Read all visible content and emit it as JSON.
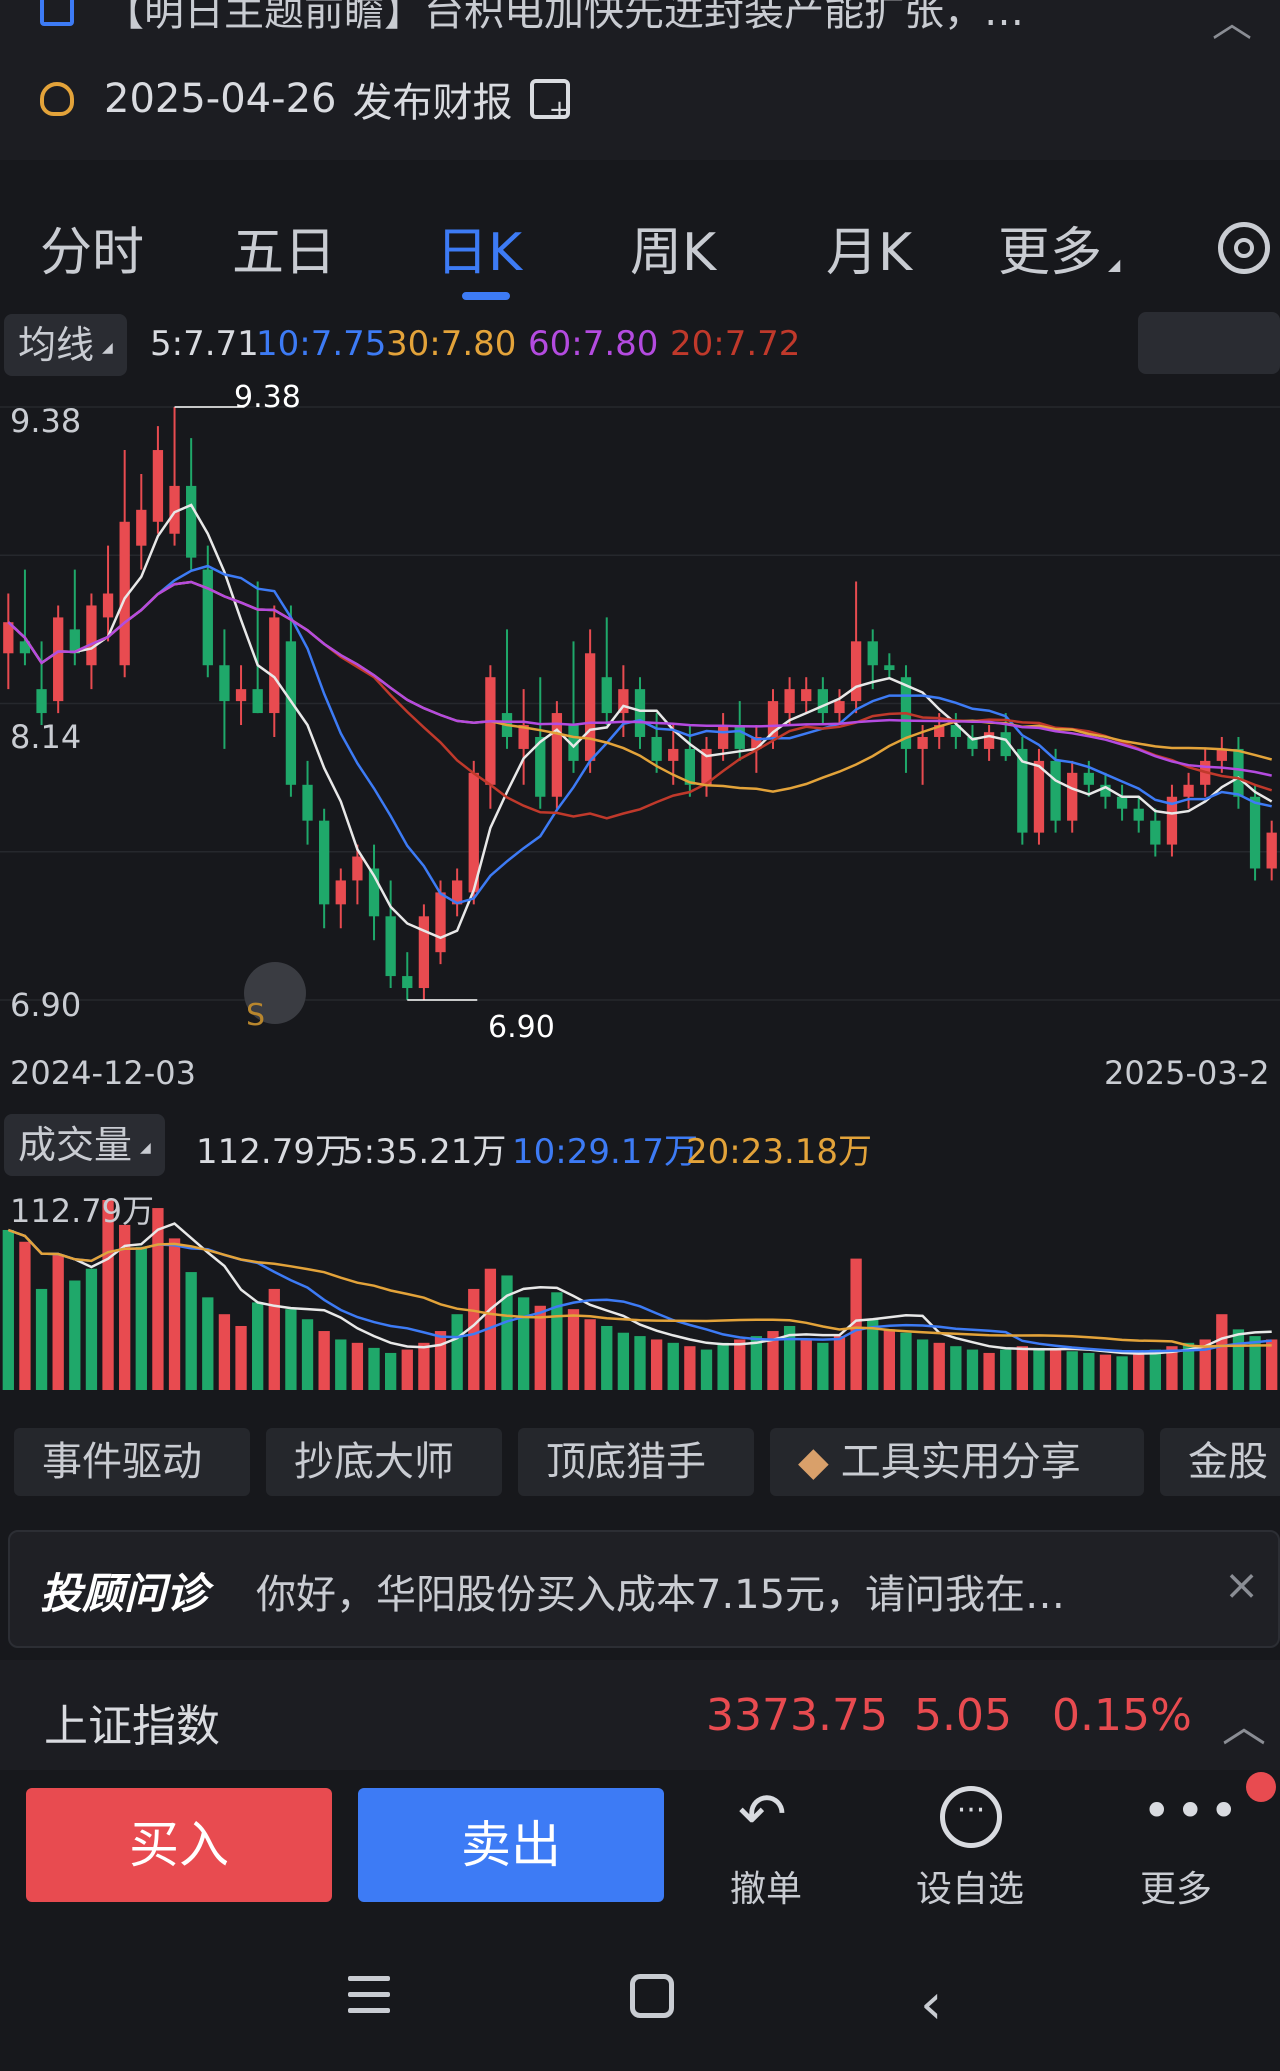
{
  "banner": {
    "news_text": "【明日主题前瞻】台积电加快先进封装产能扩张，…",
    "report_date": "2025-04-26",
    "report_label": "发布财报"
  },
  "tabs": [
    "分时",
    "五日",
    "日K",
    "周K",
    "月K",
    "更多"
  ],
  "active_tab": "日K",
  "ma": {
    "selector": "均线",
    "ma5": "5:7.71",
    "ma10": "10:7.75",
    "ma30": "30:7.80",
    "ma60": "60:7.80",
    "ma20": "20:7.72"
  },
  "price_axis": {
    "top": "9.38",
    "mid": "8.14",
    "bottom": "6.90"
  },
  "annotations": {
    "high": "9.38",
    "low": "6.90",
    "s_marker": "S"
  },
  "date_axis": {
    "start": "2024-12-03",
    "end": "2025-03-2"
  },
  "volume": {
    "selector": "成交量",
    "current": "112.79万",
    "ma5": "5:35.21万",
    "ma10": "10:29.17万",
    "ma20": "20:23.18万",
    "axis_top": "112.79万"
  },
  "tags": [
    "事件驱动",
    "抄底大师",
    "顶底猎手",
    "工具实用分享",
    "金股"
  ],
  "advisor": {
    "brand": "投顾问诊",
    "text": "你好，华阳股份买入成本7.15元，请问我在…"
  },
  "index": {
    "name": "上证指数",
    "value": "3373.75",
    "change": "5.05",
    "pct": "0.15%"
  },
  "trade": {
    "buy": "买入",
    "sell": "卖出",
    "cancel": "撤单",
    "watch": "设自选",
    "more": "更多"
  },
  "colors": {
    "up": "#e84b50",
    "down": "#1fa86a",
    "accent": "#3d7bf5",
    "ma5": "#e8e8e8",
    "ma10": "#3d7bf5",
    "ma30": "#e3a33a",
    "ma60": "#b44be0",
    "ma20": "#c0392b"
  },
  "chart_data": {
    "type": "candlestick",
    "price_range": [
      6.9,
      9.38
    ],
    "candles": [
      {
        "o": 8.35,
        "h": 8.6,
        "l": 8.2,
        "c": 8.48
      },
      {
        "o": 8.4,
        "h": 8.7,
        "l": 8.3,
        "c": 8.35
      },
      {
        "o": 8.2,
        "h": 8.4,
        "l": 8.05,
        "c": 8.1
      },
      {
        "o": 8.15,
        "h": 8.55,
        "l": 8.1,
        "c": 8.5
      },
      {
        "o": 8.45,
        "h": 8.7,
        "l": 8.3,
        "c": 8.35
      },
      {
        "o": 8.3,
        "h": 8.6,
        "l": 8.2,
        "c": 8.55
      },
      {
        "o": 8.5,
        "h": 8.8,
        "l": 8.4,
        "c": 8.6
      },
      {
        "o": 8.3,
        "h": 9.2,
        "l": 8.25,
        "c": 8.9
      },
      {
        "o": 8.8,
        "h": 9.1,
        "l": 8.7,
        "c": 8.95
      },
      {
        "o": 8.9,
        "h": 9.3,
        "l": 8.85,
        "c": 9.2
      },
      {
        "o": 8.85,
        "h": 9.38,
        "l": 8.8,
        "c": 9.05
      },
      {
        "o": 9.05,
        "h": 9.25,
        "l": 8.7,
        "c": 8.75
      },
      {
        "o": 8.7,
        "h": 8.8,
        "l": 8.25,
        "c": 8.3
      },
      {
        "o": 8.3,
        "h": 8.45,
        "l": 7.95,
        "c": 8.15
      },
      {
        "o": 8.15,
        "h": 8.3,
        "l": 8.05,
        "c": 8.2
      },
      {
        "o": 8.2,
        "h": 8.65,
        "l": 8.1,
        "c": 8.1
      },
      {
        "o": 8.1,
        "h": 8.55,
        "l": 8.0,
        "c": 8.5
      },
      {
        "o": 8.4,
        "h": 8.55,
        "l": 7.75,
        "c": 7.8
      },
      {
        "o": 7.8,
        "h": 7.9,
        "l": 7.55,
        "c": 7.65
      },
      {
        "o": 7.65,
        "h": 7.7,
        "l": 7.2,
        "c": 7.3
      },
      {
        "o": 7.3,
        "h": 7.45,
        "l": 7.2,
        "c": 7.4
      },
      {
        "o": 7.4,
        "h": 7.55,
        "l": 7.3,
        "c": 7.5
      },
      {
        "o": 7.45,
        "h": 7.55,
        "l": 7.15,
        "c": 7.25
      },
      {
        "o": 7.25,
        "h": 7.4,
        "l": 6.95,
        "c": 7.0
      },
      {
        "o": 7.0,
        "h": 7.1,
        "l": 6.9,
        "c": 6.95
      },
      {
        "o": 6.95,
        "h": 7.3,
        "l": 6.9,
        "c": 7.25
      },
      {
        "o": 7.1,
        "h": 7.4,
        "l": 7.05,
        "c": 7.35
      },
      {
        "o": 7.3,
        "h": 7.45,
        "l": 7.25,
        "c": 7.4
      },
      {
        "o": 7.35,
        "h": 7.9,
        "l": 7.3,
        "c": 7.85
      },
      {
        "o": 7.8,
        "h": 8.3,
        "l": 7.7,
        "c": 8.25
      },
      {
        "o": 8.1,
        "h": 8.45,
        "l": 7.95,
        "c": 8.0
      },
      {
        "o": 7.95,
        "h": 8.2,
        "l": 7.8,
        "c": 8.05
      },
      {
        "o": 8.0,
        "h": 8.25,
        "l": 7.7,
        "c": 7.75
      },
      {
        "o": 7.75,
        "h": 8.15,
        "l": 7.7,
        "c": 8.1
      },
      {
        "o": 8.05,
        "h": 8.4,
        "l": 7.85,
        "c": 7.9
      },
      {
        "o": 7.9,
        "h": 8.45,
        "l": 7.85,
        "c": 8.35
      },
      {
        "o": 8.25,
        "h": 8.5,
        "l": 8.05,
        "c": 8.1
      },
      {
        "o": 8.1,
        "h": 8.3,
        "l": 8.0,
        "c": 8.2
      },
      {
        "o": 8.2,
        "h": 8.25,
        "l": 7.95,
        "c": 8.0
      },
      {
        "o": 8.0,
        "h": 8.1,
        "l": 7.85,
        "c": 7.9
      },
      {
        "o": 7.9,
        "h": 8.05,
        "l": 7.8,
        "c": 7.95
      },
      {
        "o": 7.95,
        "h": 8.05,
        "l": 7.75,
        "c": 7.8
      },
      {
        "o": 7.8,
        "h": 8.0,
        "l": 7.75,
        "c": 7.95
      },
      {
        "o": 7.95,
        "h": 8.1,
        "l": 7.9,
        "c": 8.05
      },
      {
        "o": 8.05,
        "h": 8.15,
        "l": 7.9,
        "c": 7.95
      },
      {
        "o": 7.95,
        "h": 8.05,
        "l": 7.85,
        "c": 8.0
      },
      {
        "o": 8.0,
        "h": 8.2,
        "l": 7.95,
        "c": 8.15
      },
      {
        "o": 8.1,
        "h": 8.25,
        "l": 8.05,
        "c": 8.2
      },
      {
        "o": 8.15,
        "h": 8.25,
        "l": 8.1,
        "c": 8.2
      },
      {
        "o": 8.2,
        "h": 8.25,
        "l": 8.05,
        "c": 8.1
      },
      {
        "o": 8.1,
        "h": 8.2,
        "l": 8.05,
        "c": 8.15
      },
      {
        "o": 8.15,
        "h": 8.65,
        "l": 8.1,
        "c": 8.4
      },
      {
        "o": 8.4,
        "h": 8.45,
        "l": 8.2,
        "c": 8.3
      },
      {
        "o": 8.3,
        "h": 8.35,
        "l": 8.25,
        "c": 8.28
      },
      {
        "o": 8.25,
        "h": 8.3,
        "l": 7.85,
        "c": 7.95
      },
      {
        "o": 7.95,
        "h": 8.05,
        "l": 7.8,
        "c": 8.0
      },
      {
        "o": 8.0,
        "h": 8.1,
        "l": 7.95,
        "c": 8.05
      },
      {
        "o": 8.05,
        "h": 8.1,
        "l": 7.95,
        "c": 8.0
      },
      {
        "o": 8.0,
        "h": 8.05,
        "l": 7.92,
        "c": 7.95
      },
      {
        "o": 7.95,
        "h": 8.05,
        "l": 7.9,
        "c": 8.02
      },
      {
        "o": 8.02,
        "h": 8.1,
        "l": 7.9,
        "c": 7.92
      },
      {
        "o": 7.95,
        "h": 8.0,
        "l": 7.55,
        "c": 7.6
      },
      {
        "o": 7.6,
        "h": 7.95,
        "l": 7.55,
        "c": 7.9
      },
      {
        "o": 7.9,
        "h": 7.95,
        "l": 7.6,
        "c": 7.65
      },
      {
        "o": 7.65,
        "h": 7.9,
        "l": 7.6,
        "c": 7.85
      },
      {
        "o": 7.85,
        "h": 7.9,
        "l": 7.75,
        "c": 7.8
      },
      {
        "o": 7.8,
        "h": 7.85,
        "l": 7.7,
        "c": 7.75
      },
      {
        "o": 7.75,
        "h": 7.8,
        "l": 7.65,
        "c": 7.7
      },
      {
        "o": 7.7,
        "h": 7.75,
        "l": 7.6,
        "c": 7.65
      },
      {
        "o": 7.65,
        "h": 7.7,
        "l": 7.5,
        "c": 7.55
      },
      {
        "o": 7.55,
        "h": 7.8,
        "l": 7.5,
        "c": 7.75
      },
      {
        "o": 7.75,
        "h": 7.85,
        "l": 7.7,
        "c": 7.8
      },
      {
        "o": 7.8,
        "h": 7.95,
        "l": 7.75,
        "c": 7.9
      },
      {
        "o": 7.9,
        "h": 8.0,
        "l": 7.85,
        "c": 7.95
      },
      {
        "o": 7.95,
        "h": 8.0,
        "l": 7.7,
        "c": 7.75
      },
      {
        "o": 7.75,
        "h": 7.8,
        "l": 7.4,
        "c": 7.45
      },
      {
        "o": 7.45,
        "h": 7.65,
        "l": 7.4,
        "c": 7.6
      }
    ],
    "volume": {
      "values": [
        95,
        88,
        60,
        80,
        65,
        72,
        112.79,
        98,
        85,
        108,
        90,
        70,
        55,
        45,
        38,
        52,
        60,
        48,
        42,
        35,
        30,
        28,
        25,
        22,
        24,
        28,
        35,
        45,
        60,
        72,
        68,
        55,
        50,
        58,
        48,
        42,
        38,
        34,
        32,
        30,
        28,
        26,
        24,
        28,
        30,
        32,
        35,
        38,
        30,
        28,
        32,
        78,
        42,
        36,
        34,
        30,
        28,
        26,
        24,
        22,
        24,
        26,
        25,
        24,
        23,
        22,
        21,
        20,
        22,
        24,
        26,
        28,
        30,
        45,
        36,
        32,
        30
      ],
      "up": [
        false,
        true,
        false,
        true,
        false,
        false,
        true,
        true,
        false,
        true,
        true,
        false,
        false,
        true,
        true,
        false,
        true,
        false,
        false,
        true,
        false,
        true,
        false,
        false,
        true,
        true,
        true,
        false,
        true,
        true,
        false,
        false,
        true,
        false,
        true,
        true,
        false,
        false,
        false,
        true,
        false,
        true,
        false,
        false,
        true,
        false,
        true,
        false,
        true,
        false,
        true,
        true,
        false,
        true,
        false,
        false,
        true,
        false,
        false,
        true,
        false,
        true,
        false,
        true,
        false,
        false,
        true,
        false,
        true,
        false,
        true,
        false,
        true,
        true,
        false,
        false,
        true
      ]
    }
  }
}
